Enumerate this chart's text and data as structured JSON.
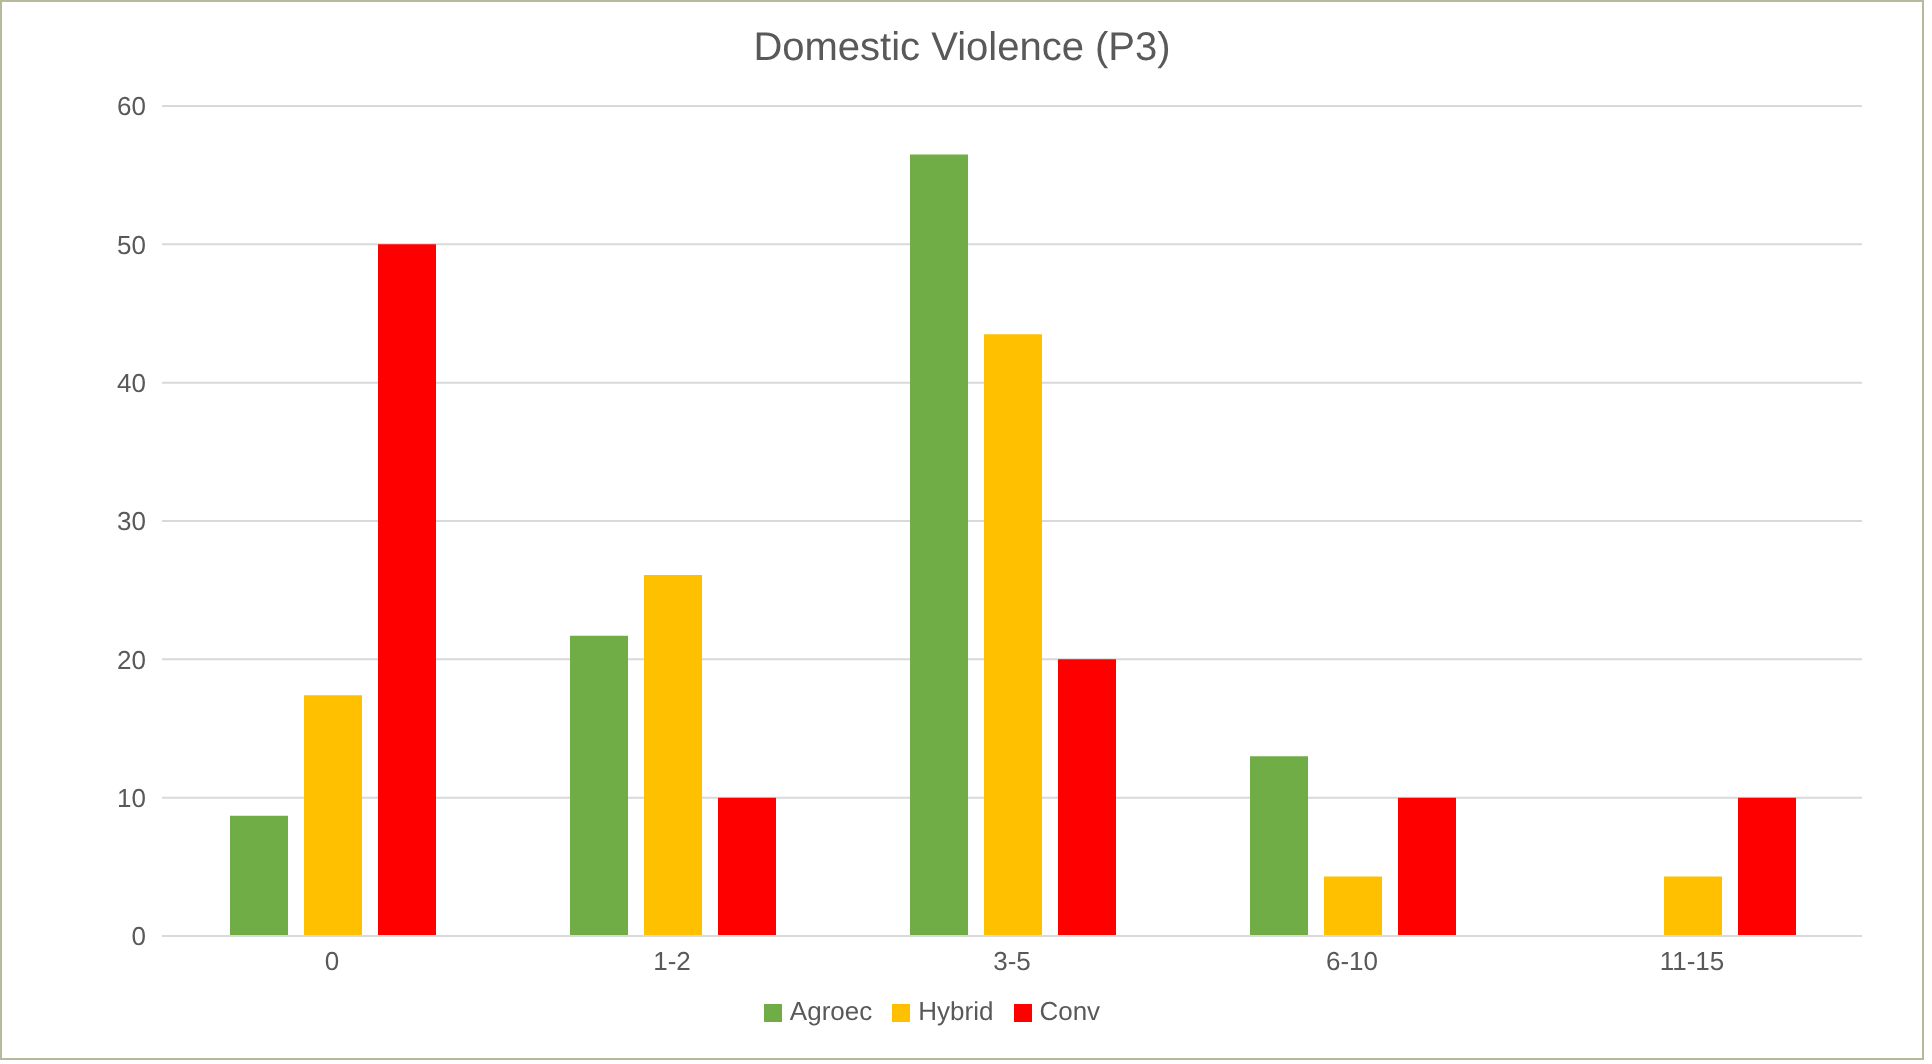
{
  "chart_data": {
    "type": "bar",
    "title": "Domestic Violence (P3)",
    "categories": [
      "0",
      "1-2",
      "3-5",
      "6-10",
      "11-15"
    ],
    "series": [
      {
        "name": "Agroec",
        "color": "#70ad47",
        "values": [
          8.7,
          21.7,
          56.5,
          13.0,
          0
        ]
      },
      {
        "name": "Hybrid",
        "color": "#ffc000",
        "values": [
          17.4,
          26.1,
          43.5,
          4.3,
          4.3
        ]
      },
      {
        "name": "Conv",
        "color": "#ff0000",
        "values": [
          50,
          10,
          20,
          10,
          10
        ]
      }
    ],
    "ylim": [
      0,
      60
    ],
    "yticks": [
      0,
      10,
      20,
      30,
      40,
      50,
      60
    ],
    "grid": "y",
    "legend": "bottom"
  }
}
